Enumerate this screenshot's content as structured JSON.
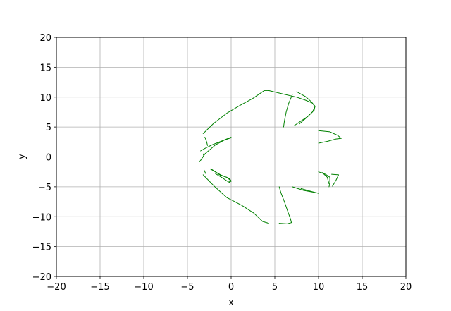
{
  "chart_data": {
    "type": "line",
    "title": "",
    "xlabel": "x",
    "ylabel": "y",
    "xlim": [
      -20,
      20
    ],
    "ylim": [
      -20,
      20
    ],
    "xticks": [
      -20,
      -15,
      -10,
      -5,
      0,
      5,
      10,
      15,
      20
    ],
    "yticks": [
      -20,
      -15,
      -10,
      -5,
      0,
      5,
      10,
      15,
      20
    ],
    "xtick_labels": [
      "−20",
      "−15",
      "−10",
      "−5",
      "0",
      "5",
      "10",
      "15",
      "20"
    ],
    "ytick_labels": [
      "−20",
      "−15",
      "−10",
      "−5",
      "0",
      "5",
      "10",
      "15",
      "20"
    ],
    "grid": true,
    "legend": "none",
    "series_color": "#008000",
    "series": [
      {
        "points": [
          [
            -3.2,
            3.9
          ],
          [
            -2.0,
            5.6
          ],
          [
            -0.5,
            7.3
          ],
          [
            1.0,
            8.6
          ],
          [
            2.5,
            9.8
          ],
          [
            3.8,
            11.1
          ],
          [
            4.3,
            11.1
          ],
          [
            6.0,
            10.5
          ],
          [
            7.5,
            10.0
          ],
          [
            8.5,
            9.5
          ],
          [
            9.3,
            9.0
          ],
          [
            9.6,
            8.5
          ],
          [
            9.5,
            7.8
          ],
          [
            8.8,
            6.8
          ],
          [
            7.8,
            5.8
          ],
          [
            7.2,
            5.2
          ]
        ]
      },
      {
        "points": [
          [
            7.5,
            10.9
          ],
          [
            8.5,
            10.1
          ],
          [
            9.2,
            9.2
          ],
          [
            9.6,
            8.4
          ],
          [
            9.3,
            7.5
          ],
          [
            8.5,
            6.4
          ],
          [
            7.8,
            5.5
          ]
        ]
      },
      {
        "points": [
          [
            7.0,
            10.4
          ],
          [
            6.6,
            9.0
          ],
          [
            6.3,
            7.5
          ],
          [
            6.1,
            6.0
          ],
          [
            6.0,
            5.0
          ]
        ]
      },
      {
        "points": [
          [
            -3.5,
            1.0
          ],
          [
            -2.9,
            1.5
          ],
          [
            -2.2,
            2.0
          ],
          [
            -1.0,
            2.7
          ],
          [
            0.0,
            3.3
          ]
        ]
      },
      {
        "points": [
          [
            -3.6,
            -0.8
          ],
          [
            -3.0,
            0.5
          ],
          [
            -1.8,
            2.0
          ],
          [
            -0.8,
            2.8
          ],
          [
            0.0,
            3.2
          ]
        ]
      },
      {
        "points": [
          [
            -3.0,
            3.3
          ],
          [
            -2.8,
            2.5
          ],
          [
            -2.7,
            1.9
          ]
        ]
      },
      {
        "points": [
          [
            -3.2,
            0.5
          ],
          [
            -3.1,
            0.0
          ]
        ]
      },
      {
        "points": [
          [
            -3.2,
            -3.0
          ],
          [
            -2.0,
            -4.8
          ],
          [
            -0.5,
            -6.8
          ],
          [
            1.2,
            -8.1
          ],
          [
            2.6,
            -9.4
          ],
          [
            3.6,
            -10.8
          ],
          [
            4.3,
            -11.1
          ]
        ]
      },
      {
        "points": [
          [
            5.5,
            -11.1
          ],
          [
            6.4,
            -11.2
          ],
          [
            6.9,
            -11.0
          ],
          [
            6.8,
            -10.4
          ],
          [
            6.5,
            -9.2
          ],
          [
            6.1,
            -7.5
          ],
          [
            5.7,
            -6.0
          ],
          [
            5.5,
            -5.0
          ]
        ]
      },
      {
        "points": [
          [
            -2.4,
            -2.0
          ],
          [
            -1.2,
            -3.0
          ],
          [
            -0.2,
            -3.6
          ],
          [
            0.0,
            -4.0
          ]
        ]
      },
      {
        "points": [
          [
            -2.2,
            -2.1
          ],
          [
            -1.2,
            -3.1
          ],
          [
            -0.5,
            -3.4
          ],
          [
            -0.1,
            -3.9
          ],
          [
            -0.2,
            -4.3
          ]
        ]
      },
      {
        "points": [
          [
            -1.8,
            -2.8
          ],
          [
            -1.0,
            -3.5
          ],
          [
            -0.3,
            -4.2
          ],
          [
            0.0,
            -4.1
          ]
        ]
      },
      {
        "points": [
          [
            -3.1,
            -2.2
          ],
          [
            -2.9,
            -2.8
          ]
        ]
      },
      {
        "points": [
          [
            8.0,
            -5.3
          ],
          [
            9.0,
            -5.7
          ],
          [
            10.0,
            -6.1
          ]
        ]
      },
      {
        "points": [
          [
            7.0,
            -5.0
          ],
          [
            8.3,
            -5.6
          ],
          [
            9.8,
            -6.0
          ]
        ]
      },
      {
        "points": [
          [
            10.0,
            -2.5
          ],
          [
            10.8,
            -2.9
          ],
          [
            11.3,
            -3.4
          ],
          [
            11.3,
            -4.4
          ],
          [
            11.2,
            -5.0
          ]
        ]
      },
      {
        "points": [
          [
            10.4,
            -2.6
          ],
          [
            11.0,
            -3.4
          ],
          [
            11.2,
            -4.5
          ]
        ]
      },
      {
        "points": [
          [
            11.5,
            -2.9
          ],
          [
            12.3,
            -3.0
          ],
          [
            12.0,
            -3.9
          ],
          [
            11.6,
            -4.9
          ]
        ]
      },
      {
        "points": [
          [
            10.0,
            4.4
          ],
          [
            11.3,
            4.2
          ],
          [
            12.2,
            3.6
          ],
          [
            12.6,
            3.1
          ]
        ]
      },
      {
        "points": [
          [
            10.0,
            2.3
          ],
          [
            11.0,
            2.6
          ],
          [
            12.0,
            3.0
          ],
          [
            12.6,
            3.1
          ]
        ]
      }
    ]
  }
}
